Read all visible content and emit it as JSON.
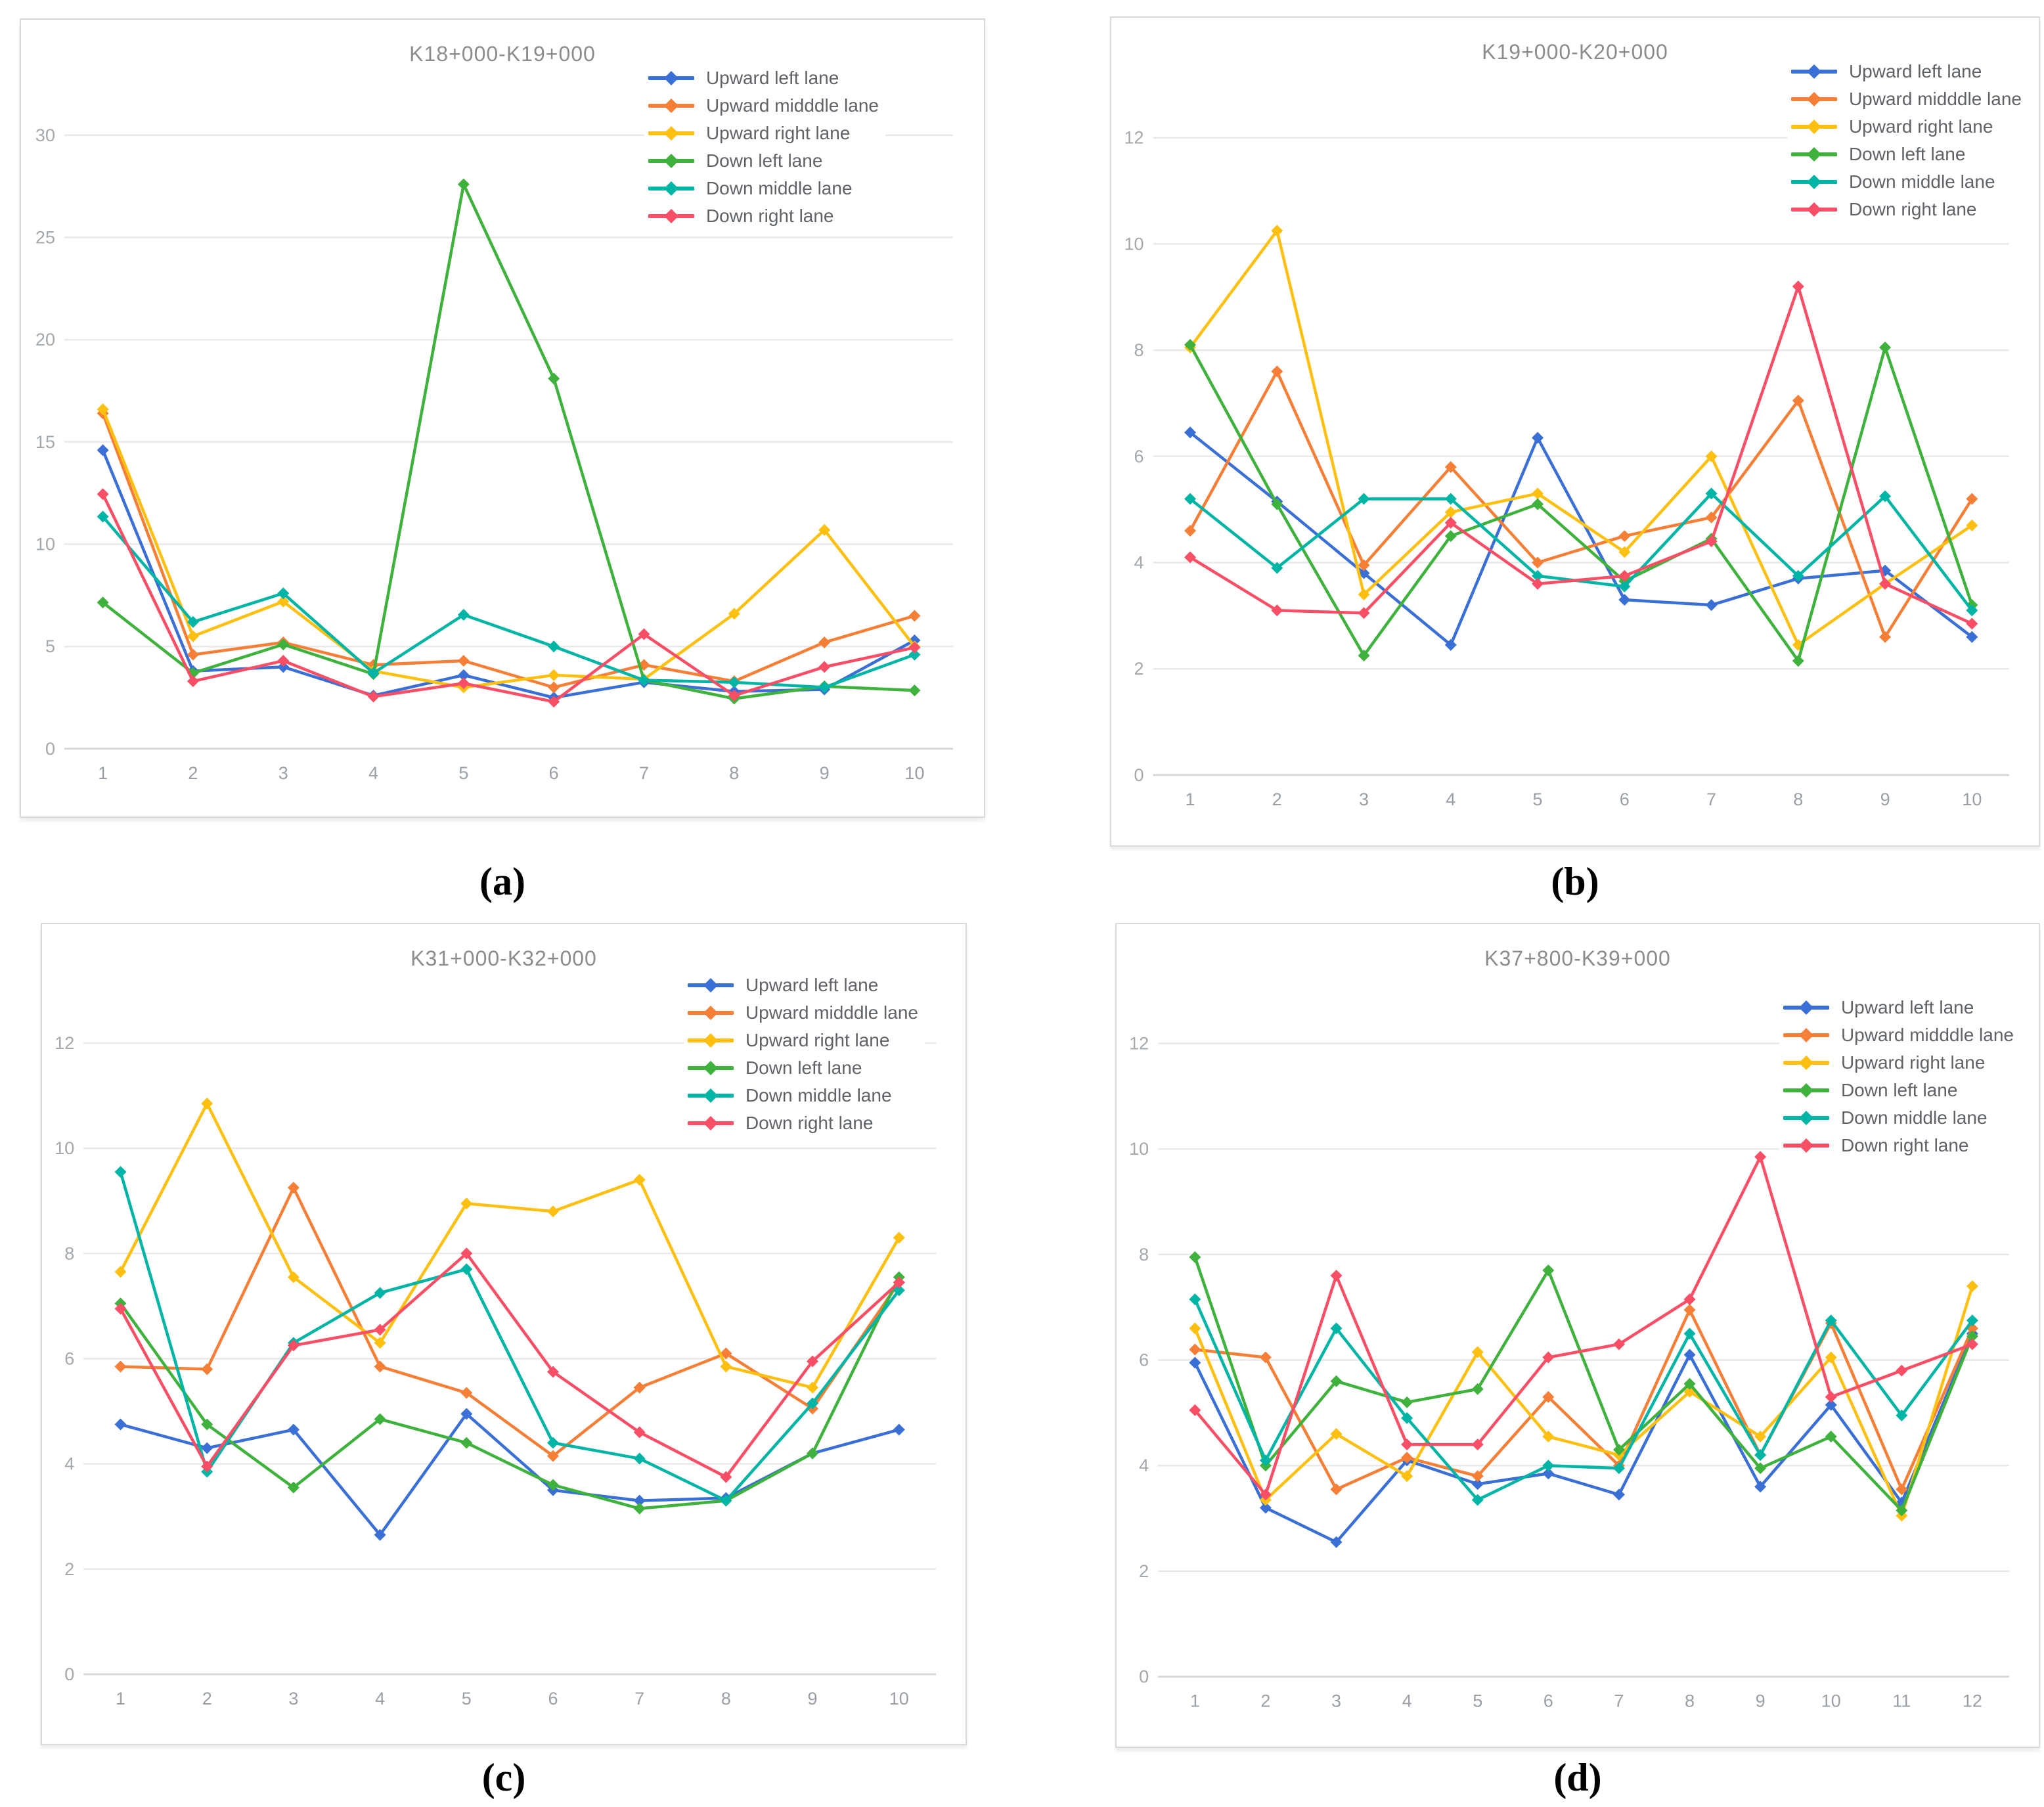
{
  "figure": {
    "background": "#ffffff",
    "grid_color": "#e9e9e9",
    "axis_line_color": "#d8d8d8",
    "tick_label_color": "#a3a8ad",
    "title_color": "#8c8c8c"
  },
  "legend_labels": [
    "Upward left lane",
    "Upward midddle lane",
    "Upward right lane",
    "Down left lane",
    "Down middle lane",
    "Down right lane"
  ],
  "series_colors": {
    "upward_left": "#3a6fd6",
    "upward_middle": "#f57f36",
    "upward_right": "#fdc010",
    "down_left": "#3eb23c",
    "down_middle": "#00b5a5",
    "down_right": "#f84f66"
  },
  "chart_data": [
    {
      "id": "a",
      "caption": "(a)",
      "type": "line",
      "title": "K18+000-K19+000",
      "xlabel": "",
      "ylabel": "",
      "ylim": [
        0,
        30
      ],
      "yticks": [
        0,
        5,
        10,
        15,
        20,
        25,
        30
      ],
      "x": [
        1,
        2,
        3,
        4,
        5,
        6,
        7,
        8,
        9,
        10
      ],
      "grid": true,
      "legend_position": "top-right",
      "series": [
        {
          "name": "Upward left lane",
          "color": "#3a6fd6",
          "values": [
            14.6,
            3.8,
            4.0,
            2.6,
            3.6,
            2.5,
            3.25,
            2.8,
            2.9,
            5.3
          ]
        },
        {
          "name": "Upward midddle lane",
          "color": "#f57f36",
          "values": [
            16.4,
            4.6,
            5.2,
            4.1,
            4.3,
            3.0,
            4.1,
            3.3,
            5.2,
            6.5
          ]
        },
        {
          "name": "Upward right lane",
          "color": "#fdc010",
          "values": [
            16.6,
            5.5,
            7.2,
            3.8,
            3.0,
            3.6,
            3.4,
            6.6,
            10.7,
            5.0
          ]
        },
        {
          "name": "Down left lane",
          "color": "#3eb23c",
          "values": [
            7.15,
            3.7,
            5.1,
            3.65,
            27.6,
            18.1,
            3.35,
            2.45,
            3.05,
            2.85
          ]
        },
        {
          "name": "Down middle lane",
          "color": "#00b5a5",
          "values": [
            11.35,
            6.2,
            7.6,
            3.7,
            6.55,
            5.0,
            3.35,
            3.25,
            3.0,
            4.6
          ]
        },
        {
          "name": "Down right lane",
          "color": "#f84f66",
          "values": [
            12.45,
            3.3,
            4.3,
            2.55,
            3.2,
            2.3,
            5.6,
            2.6,
            4.0,
            4.95
          ]
        }
      ]
    },
    {
      "id": "b",
      "caption": "(b)",
      "type": "line",
      "title": "K19+000-K20+000",
      "xlabel": "",
      "ylabel": "",
      "ylim": [
        0,
        12
      ],
      "yticks": [
        0,
        2,
        4,
        6,
        8,
        10,
        12
      ],
      "x": [
        1,
        2,
        3,
        4,
        5,
        6,
        7,
        8,
        9,
        10
      ],
      "grid": true,
      "legend_position": "top-right",
      "series": [
        {
          "name": "Upward left lane",
          "color": "#3a6fd6",
          "values": [
            6.45,
            5.15,
            3.8,
            2.45,
            6.35,
            3.3,
            3.2,
            3.7,
            3.85,
            2.6
          ]
        },
        {
          "name": "Upward midddle lane",
          "color": "#f57f36",
          "values": [
            4.6,
            7.6,
            3.95,
            5.8,
            4.0,
            4.5,
            4.85,
            7.05,
            2.6,
            5.2
          ]
        },
        {
          "name": "Upward right lane",
          "color": "#fdc010",
          "values": [
            8.05,
            10.25,
            3.4,
            4.95,
            5.3,
            4.2,
            6.0,
            2.45,
            3.6,
            4.7
          ]
        },
        {
          "name": "Down left lane",
          "color": "#3eb23c",
          "values": [
            8.1,
            5.1,
            2.25,
            4.5,
            5.1,
            3.65,
            4.45,
            2.15,
            8.05,
            3.2
          ]
        },
        {
          "name": "Down middle lane",
          "color": "#00b5a5",
          "values": [
            5.2,
            3.9,
            5.2,
            5.2,
            3.75,
            3.55,
            5.3,
            3.75,
            5.25,
            3.1
          ]
        },
        {
          "name": "Down right lane",
          "color": "#f84f66",
          "values": [
            4.1,
            3.1,
            3.05,
            4.75,
            3.6,
            3.75,
            4.4,
            9.2,
            3.6,
            2.85
          ]
        }
      ]
    },
    {
      "id": "c",
      "caption": "(c)",
      "type": "line",
      "title": "K31+000-K32+000",
      "xlabel": "",
      "ylabel": "",
      "ylim": [
        0,
        12
      ],
      "yticks": [
        0,
        2,
        4,
        6,
        8,
        10,
        12
      ],
      "x": [
        1,
        2,
        3,
        4,
        5,
        6,
        7,
        8,
        9,
        10
      ],
      "grid": true,
      "legend_position": "top-right",
      "series": [
        {
          "name": "Upward left lane",
          "color": "#3a6fd6",
          "values": [
            4.75,
            4.3,
            4.65,
            2.65,
            4.95,
            3.5,
            3.3,
            3.35,
            4.2,
            4.65
          ]
        },
        {
          "name": "Upward midddle lane",
          "color": "#f57f36",
          "values": [
            5.85,
            5.8,
            9.25,
            5.85,
            5.35,
            4.15,
            5.45,
            6.1,
            5.05,
            7.45
          ]
        },
        {
          "name": "Upward right lane",
          "color": "#fdc010",
          "values": [
            7.65,
            10.85,
            7.55,
            6.3,
            8.95,
            8.8,
            9.4,
            5.85,
            5.45,
            8.3
          ]
        },
        {
          "name": "Down left lane",
          "color": "#3eb23c",
          "values": [
            7.05,
            4.75,
            3.55,
            4.85,
            4.4,
            3.6,
            3.15,
            3.3,
            4.2,
            7.55
          ]
        },
        {
          "name": "Down middle lane",
          "color": "#00b5a5",
          "values": [
            9.55,
            3.85,
            6.3,
            7.25,
            7.7,
            4.4,
            4.1,
            3.3,
            5.15,
            7.3
          ]
        },
        {
          "name": "Down right lane",
          "color": "#f84f66",
          "values": [
            6.95,
            3.95,
            6.25,
            6.55,
            8.0,
            5.75,
            4.6,
            3.75,
            5.95,
            7.45
          ]
        }
      ]
    },
    {
      "id": "d",
      "caption": "(d)",
      "type": "line",
      "title": "K37+800-K39+000",
      "xlabel": "",
      "ylabel": "",
      "ylim": [
        0,
        12
      ],
      "yticks": [
        0,
        2,
        4,
        6,
        8,
        10,
        12
      ],
      "x": [
        1,
        2,
        3,
        4,
        5,
        6,
        7,
        8,
        9,
        10,
        11,
        12
      ],
      "grid": true,
      "legend_position": "top-right",
      "series": [
        {
          "name": "Upward left lane",
          "color": "#3a6fd6",
          "values": [
            5.95,
            3.2,
            2.55,
            4.1,
            3.65,
            3.85,
            3.45,
            6.1,
            3.6,
            5.15,
            3.3,
            6.5
          ]
        },
        {
          "name": "Upward midddle lane",
          "color": "#f57f36",
          "values": [
            6.2,
            6.05,
            3.55,
            4.15,
            3.8,
            5.3,
            4.0,
            6.95,
            4.2,
            6.7,
            3.55,
            6.6
          ]
        },
        {
          "name": "Upward right lane",
          "color": "#fdc010",
          "values": [
            6.6,
            3.35,
            4.6,
            3.8,
            6.15,
            4.55,
            4.2,
            5.4,
            4.55,
            6.05,
            3.05,
            7.4
          ]
        },
        {
          "name": "Down left lane",
          "color": "#3eb23c",
          "values": [
            7.95,
            4.0,
            5.6,
            5.2,
            5.45,
            7.7,
            4.3,
            5.55,
            3.95,
            4.55,
            3.15,
            6.45
          ]
        },
        {
          "name": "Down middle lane",
          "color": "#00b5a5",
          "values": [
            7.15,
            4.1,
            6.6,
            4.9,
            3.35,
            4.0,
            3.95,
            6.5,
            4.2,
            6.75,
            4.95,
            6.75
          ]
        },
        {
          "name": "Down right lane",
          "color": "#f84f66",
          "values": [
            5.05,
            3.45,
            7.6,
            4.4,
            4.4,
            6.05,
            6.3,
            7.15,
            9.85,
            5.3,
            5.8,
            6.3
          ]
        }
      ]
    }
  ]
}
